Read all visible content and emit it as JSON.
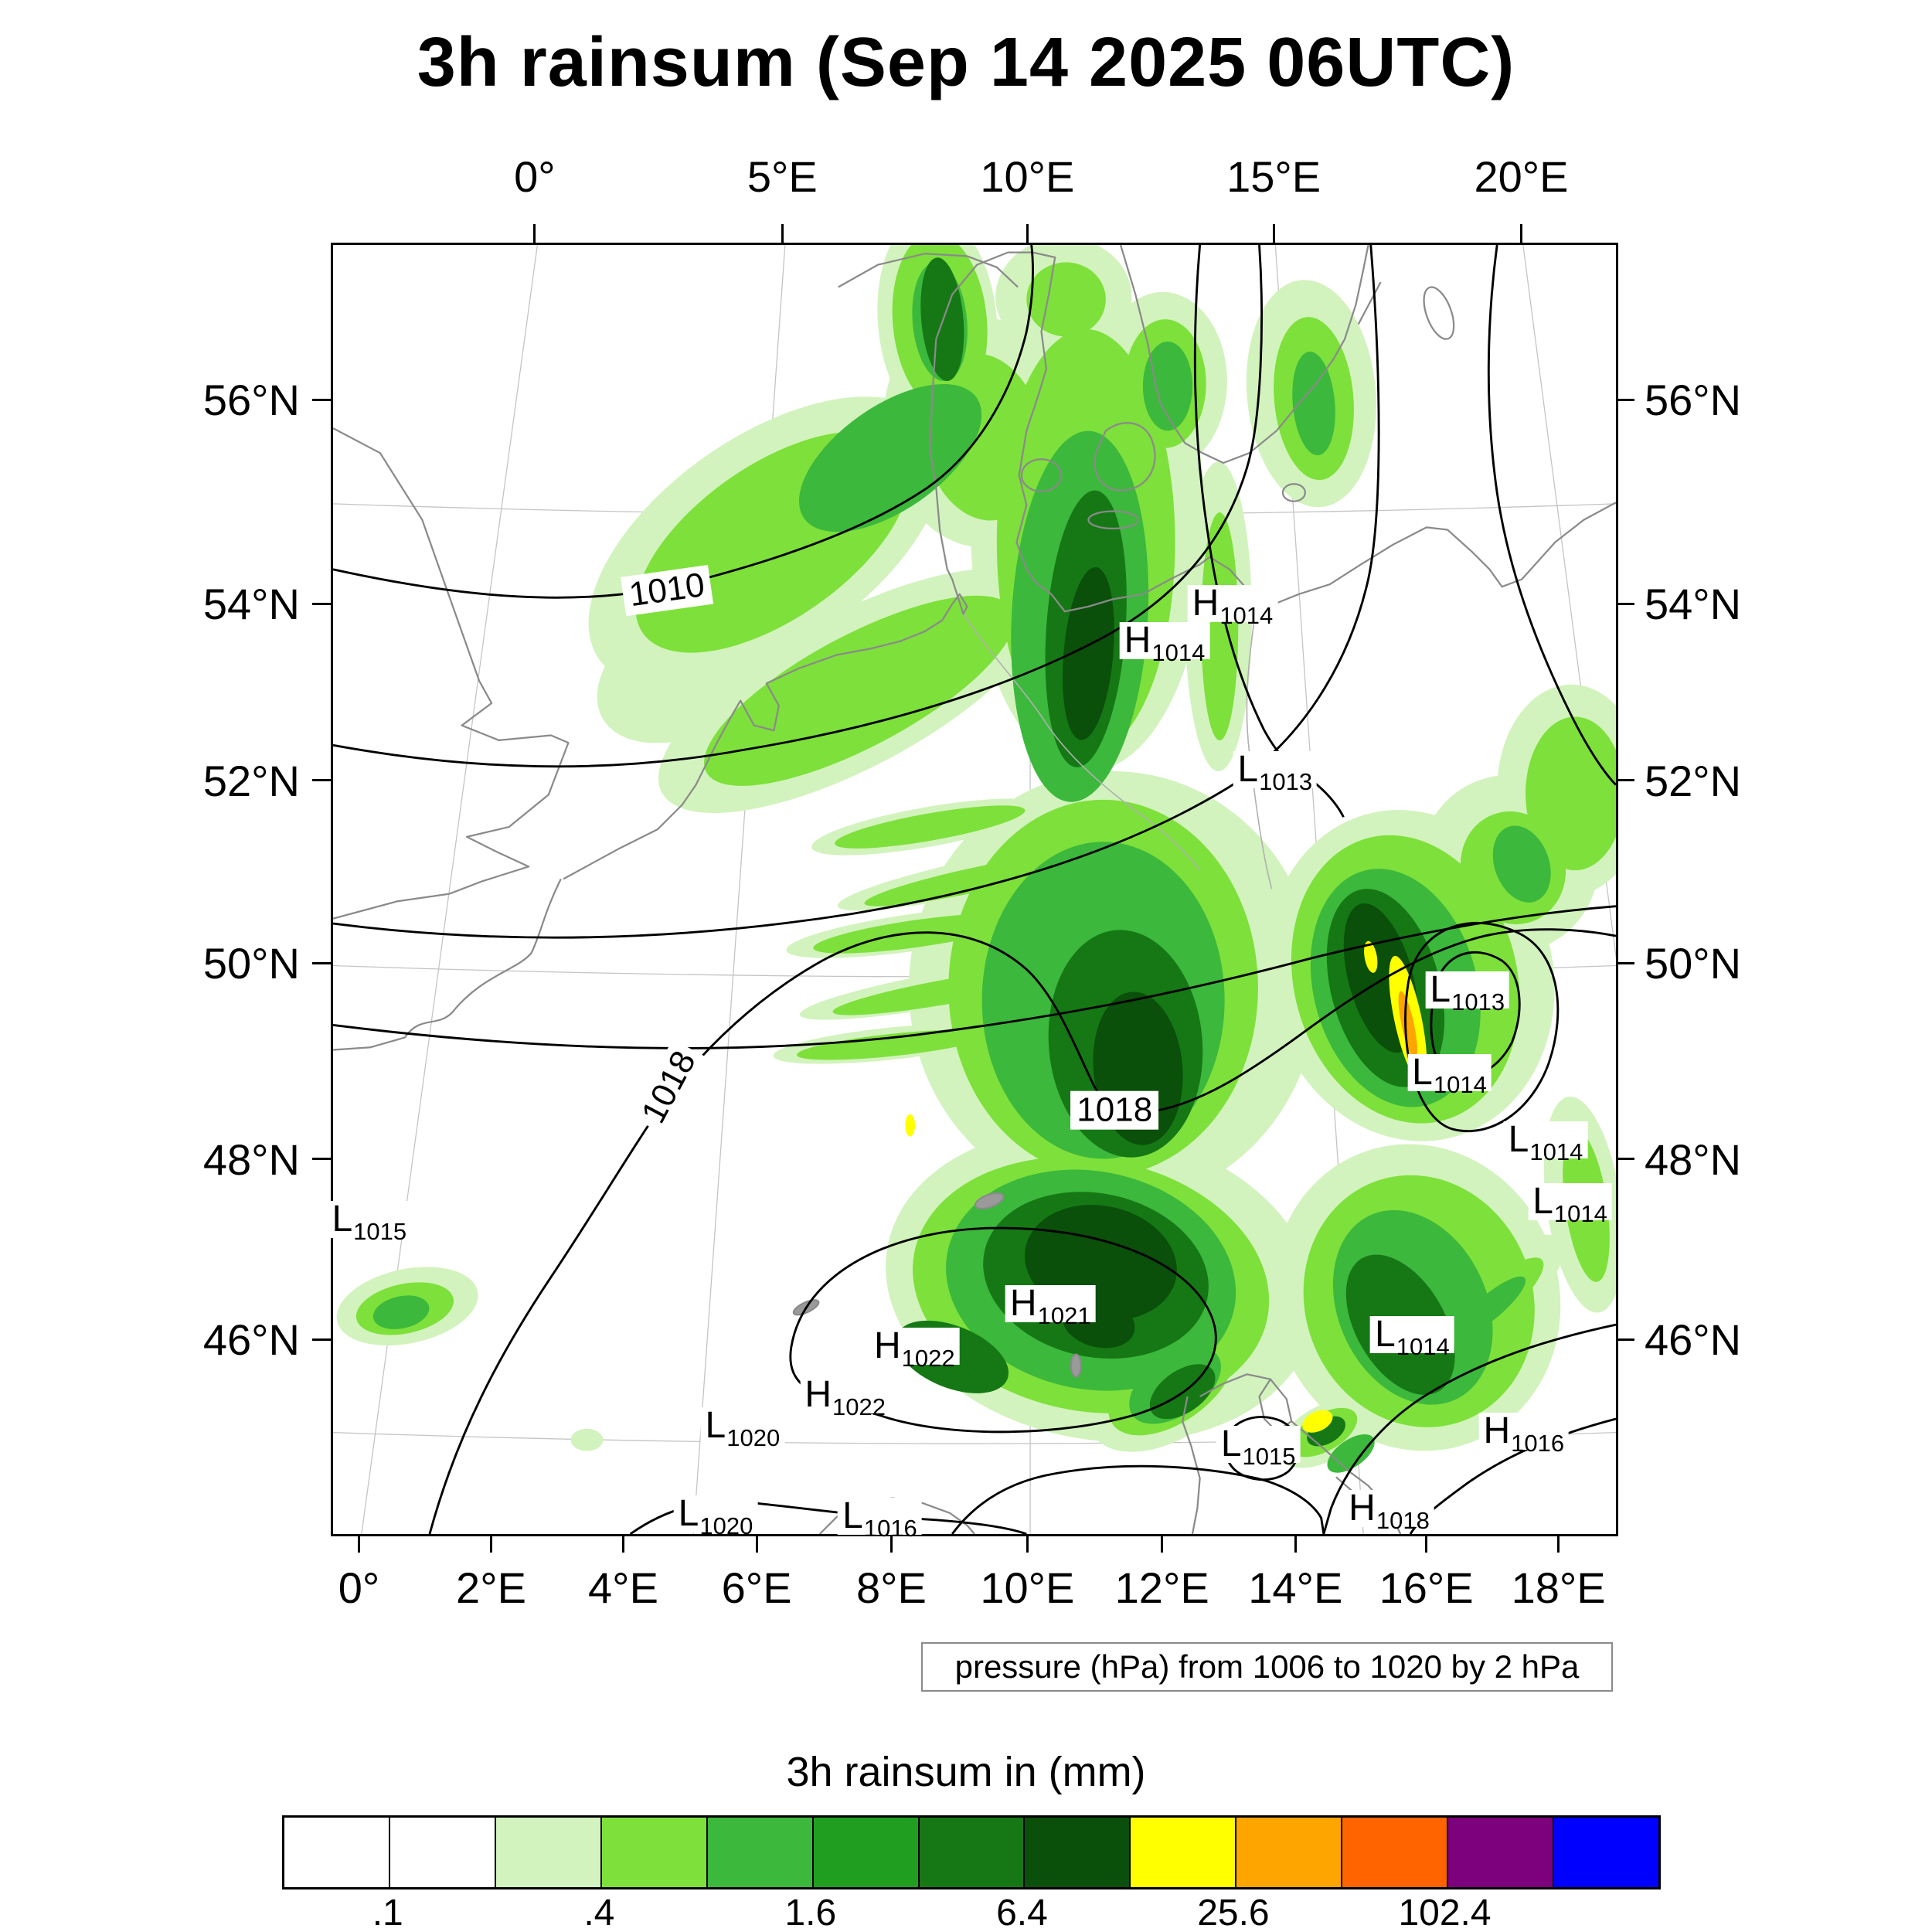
{
  "title": "3h rainsum (Sep 14 2025 06UTC)",
  "pressure_caption": "pressure (hPa) from 1006 to 1020 by 2 hPa",
  "axes": {
    "lon_top": [
      {
        "label": "0°",
        "f": 0.159
      },
      {
        "label": "5°E",
        "f": 0.352
      },
      {
        "label": "10°E",
        "f": 0.543
      },
      {
        "label": "15°E",
        "f": 0.735
      },
      {
        "label": "20°E",
        "f": 0.928
      }
    ],
    "lon_bottom": [
      {
        "label": "0°",
        "f": 0.022
      },
      {
        "label": "2°E",
        "f": 0.125
      },
      {
        "label": "4°E",
        "f": 0.228
      },
      {
        "label": "6°E",
        "f": 0.332
      },
      {
        "label": "8°E",
        "f": 0.437
      },
      {
        "label": "10°E",
        "f": 0.543
      },
      {
        "label": "12°E",
        "f": 0.648
      },
      {
        "label": "14°E",
        "f": 0.752
      },
      {
        "label": "16°E",
        "f": 0.854
      },
      {
        "label": "18°E",
        "f": 0.957
      }
    ],
    "lat": [
      {
        "label": "56°N",
        "f": 0.122
      },
      {
        "label": "54°N",
        "f": 0.28
      },
      {
        "label": "52°N",
        "f": 0.417
      },
      {
        "label": "50°N",
        "f": 0.559
      },
      {
        "label": "48°N",
        "f": 0.711
      },
      {
        "label": "46°N",
        "f": 0.851
      }
    ]
  },
  "map": {
    "pressure_centers": [
      {
        "letter": "H",
        "value": "1014",
        "fx": 0.703,
        "fy": 0.28
      },
      {
        "letter": "H",
        "value": "1014",
        "fx": 0.65,
        "fy": 0.309
      },
      {
        "letter": "L",
        "value": "1013",
        "fx": 0.736,
        "fy": 0.409
      },
      {
        "letter": "L",
        "value": "1013",
        "fx": 0.886,
        "fy": 0.58
      },
      {
        "letter": "L",
        "value": "1014",
        "fx": 0.872,
        "fy": 0.644
      },
      {
        "letter": "L",
        "value": "1014",
        "fx": 0.947,
        "fy": 0.696
      },
      {
        "letter": "L",
        "value": "1014",
        "fx": 0.966,
        "fy": 0.744
      },
      {
        "letter": "L",
        "value": "1015",
        "fx": 0.03,
        "fy": 0.758
      },
      {
        "letter": "H",
        "value": "1021",
        "fx": 0.561,
        "fy": 0.823
      },
      {
        "letter": "H",
        "value": "1022",
        "fx": 0.455,
        "fy": 0.856
      },
      {
        "letter": "H",
        "value": "1022",
        "fx": 0.401,
        "fy": 0.894
      },
      {
        "letter": "L",
        "value": "1020",
        "fx": 0.321,
        "fy": 0.918
      },
      {
        "letter": "L",
        "value": "1014",
        "fx": 0.843,
        "fy": 0.847
      },
      {
        "letter": "L",
        "value": "1015",
        "fx": 0.723,
        "fy": 0.932
      },
      {
        "letter": "H",
        "value": "1016",
        "fx": 0.93,
        "fy": 0.922
      },
      {
        "letter": "L",
        "value": "1020",
        "fx": 0.3,
        "fy": 0.986
      },
      {
        "letter": "L",
        "value": "1016",
        "fx": 0.428,
        "fy": 0.988
      },
      {
        "letter": "H",
        "value": "1018",
        "fx": 0.825,
        "fy": 0.982
      }
    ],
    "contour_labels": [
      {
        "text": "1010",
        "fx": 0.262,
        "fy": 0.27,
        "rot": -8
      },
      {
        "text": "1018",
        "fx": 0.264,
        "fy": 0.655,
        "rot": -62
      },
      {
        "text": "1018",
        "fx": 0.611,
        "fy": 0.673,
        "rot": 0
      }
    ],
    "isobar_range": "1006 to 1020 by 2 hPa"
  },
  "legend": {
    "title": "3h rainsum in (mm)",
    "cells": [
      "#ffffff",
      "#ffffff",
      "#d2f3bd",
      "#7ee03b",
      "#3cb83c",
      "#1f9e1f",
      "#157815",
      "#0a4f0a",
      "#ffff00",
      "#ffa500",
      "#ff6400",
      "#7d007d",
      "#0000ff"
    ],
    "tick_labels": [
      {
        "label": ".1",
        "f": 0.0769
      },
      {
        "label": ".4",
        "f": 0.2308
      },
      {
        "label": "1.6",
        "f": 0.3846
      },
      {
        "label": "6.4",
        "f": 0.5385
      },
      {
        "label": "25.6",
        "f": 0.6923
      },
      {
        "label": "102.4",
        "f": 0.8462
      }
    ]
  }
}
